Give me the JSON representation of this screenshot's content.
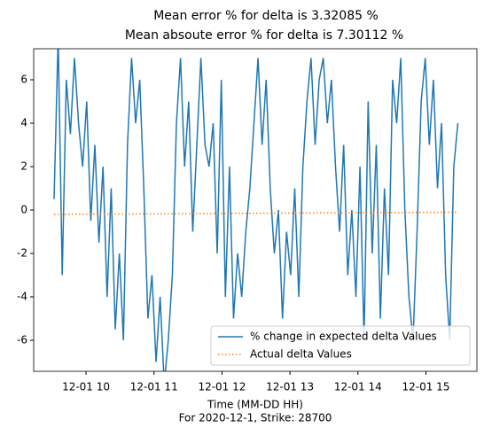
{
  "chart_data": {
    "type": "line",
    "title": [
      "Mean error % for delta is 3.32085 %",
      "Mean absoute error % for delta is 7.30112 %"
    ],
    "xlabel": [
      "Time (MM-DD HH)",
      "For 2020-12-1, Strike: 28700"
    ],
    "xlim": [
      9.23,
      15.75
    ],
    "xticks": [
      {
        "value": 10,
        "label": "12-01 10"
      },
      {
        "value": 11,
        "label": "12-01 11"
      },
      {
        "value": 12,
        "label": "12-01 12"
      },
      {
        "value": 13,
        "label": "12-01 13"
      },
      {
        "value": 14,
        "label": "12-01 14"
      },
      {
        "value": 15,
        "label": "12-01 15"
      }
    ],
    "ylim": [
      -7.43,
      7.43
    ],
    "yticks": [
      -6,
      -4,
      -2,
      0,
      2,
      4,
      6
    ],
    "legend": "lower right",
    "series": [
      {
        "name": "% change in expected delta Values",
        "color": "#1f77b4",
        "style": "solid",
        "x": [
          9.53,
          9.59,
          9.65,
          9.71,
          9.77,
          9.83,
          9.89,
          9.95,
          10.01,
          10.07,
          10.13,
          10.19,
          10.25,
          10.31,
          10.37,
          10.43,
          10.49,
          10.55,
          10.61,
          10.67,
          10.73,
          10.79,
          10.85,
          10.91,
          10.97,
          11.03,
          11.09,
          11.15,
          11.21,
          11.27,
          11.33,
          11.39,
          11.45,
          11.51,
          11.57,
          11.63,
          11.69,
          11.75,
          11.81,
          11.87,
          11.93,
          11.99,
          12.05,
          12.11,
          12.17,
          12.23,
          12.29,
          12.35,
          12.41,
          12.47,
          12.53,
          12.59,
          12.65,
          12.71,
          12.77,
          12.83,
          12.89,
          12.95,
          13.01,
          13.07,
          13.13,
          13.19,
          13.25,
          13.31,
          13.37,
          13.43,
          13.49,
          13.55,
          13.61,
          13.67,
          13.73,
          13.79,
          13.85,
          13.91,
          13.97,
          14.03,
          14.09,
          14.15,
          14.21,
          14.27,
          14.33,
          14.39,
          14.45,
          14.51,
          14.57,
          14.63,
          14.69,
          14.75,
          14.81,
          14.87,
          14.93,
          14.99,
          15.05,
          15.11,
          15.17,
          15.23,
          15.29,
          15.35,
          15.41,
          15.47
        ],
        "values": [
          0.5,
          8,
          -3,
          6,
          3.5,
          7,
          4,
          2,
          5,
          -0.5,
          3,
          -1.5,
          2,
          -4,
          1,
          -5.5,
          -2,
          -6,
          3,
          7,
          4,
          6,
          1,
          -5,
          -3,
          -7,
          -4,
          -8,
          -6,
          -3,
          4,
          7,
          2,
          5,
          -1,
          3,
          7,
          3,
          2,
          4,
          -2,
          6,
          -4,
          2,
          -5,
          -2,
          -4,
          -1,
          1,
          4,
          7,
          3,
          6,
          1,
          -2,
          0,
          -5,
          -1,
          -3,
          1,
          -4,
          2,
          5,
          7,
          3,
          6,
          7,
          4,
          6,
          2,
          -1,
          3,
          -3,
          0,
          -4,
          2,
          -6,
          5,
          -2,
          3,
          -5,
          1,
          -3,
          6,
          4,
          7,
          0,
          -4,
          -6,
          -1,
          5,
          7,
          3,
          6,
          1,
          4,
          -3,
          -6,
          2,
          4
        ]
      },
      {
        "name": "Actual delta Values",
        "color": "#ff7f0e",
        "style": "dotted",
        "x": [
          9.53,
          12.5,
          15.47
        ],
        "values": [
          -0.2,
          -0.15,
          -0.1
        ]
      }
    ]
  }
}
